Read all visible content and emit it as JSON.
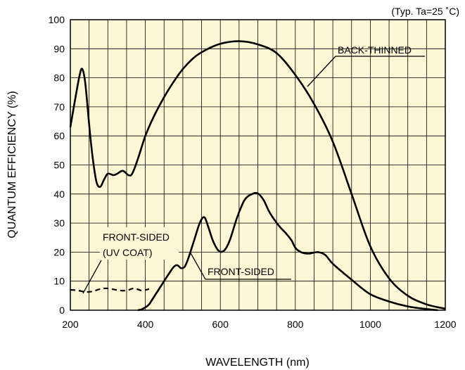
{
  "note": "(Typ. Ta=25 ˚C)",
  "chart_data": {
    "type": "line",
    "xlabel": "WAVELENGTH (nm)",
    "ylabel": "QUANTUM EFFICIENCY (%)",
    "xlim": [
      200,
      1200
    ],
    "ylim": [
      0,
      100
    ],
    "x_ticks": [
      200,
      400,
      600,
      800,
      1000,
      1200
    ],
    "y_ticks": [
      0,
      10,
      20,
      30,
      40,
      50,
      60,
      70,
      80,
      90,
      100
    ],
    "grid": true,
    "background_color": "#fdf7d6",
    "series": [
      {
        "name": "BACK-THINNED",
        "style": "solid",
        "points": [
          [
            200,
            63
          ],
          [
            212,
            72
          ],
          [
            225,
            81
          ],
          [
            232,
            83
          ],
          [
            240,
            78
          ],
          [
            250,
            64
          ],
          [
            260,
            52
          ],
          [
            270,
            44
          ],
          [
            280,
            42.5
          ],
          [
            290,
            45
          ],
          [
            300,
            47
          ],
          [
            315,
            46.5
          ],
          [
            325,
            47
          ],
          [
            340,
            48
          ],
          [
            355,
            46.5
          ],
          [
            365,
            47
          ],
          [
            380,
            52
          ],
          [
            400,
            60
          ],
          [
            420,
            66
          ],
          [
            440,
            71
          ],
          [
            460,
            75.5
          ],
          [
            480,
            79.5
          ],
          [
            500,
            83
          ],
          [
            530,
            87
          ],
          [
            560,
            89.5
          ],
          [
            600,
            91.7
          ],
          [
            650,
            92.6
          ],
          [
            700,
            91.5
          ],
          [
            750,
            88.5
          ],
          [
            800,
            81
          ],
          [
            850,
            71
          ],
          [
            900,
            58
          ],
          [
            950,
            40
          ],
          [
            1000,
            22
          ],
          [
            1050,
            11
          ],
          [
            1100,
            5
          ],
          [
            1150,
            2
          ],
          [
            1200,
            0.5
          ]
        ]
      },
      {
        "name": "FRONT-SIDED",
        "style": "solid",
        "points": [
          [
            380,
            0
          ],
          [
            390,
            0.3
          ],
          [
            400,
            1
          ],
          [
            410,
            2
          ],
          [
            420,
            4
          ],
          [
            440,
            8
          ],
          [
            460,
            12
          ],
          [
            475,
            14.8
          ],
          [
            485,
            15.5
          ],
          [
            495,
            14.5
          ],
          [
            505,
            15
          ],
          [
            515,
            18
          ],
          [
            530,
            24
          ],
          [
            545,
            30
          ],
          [
            557,
            32
          ],
          [
            567,
            29
          ],
          [
            580,
            24
          ],
          [
            595,
            20.5
          ],
          [
            610,
            20.5
          ],
          [
            625,
            24
          ],
          [
            645,
            32
          ],
          [
            665,
            38
          ],
          [
            685,
            40
          ],
          [
            700,
            40.2
          ],
          [
            715,
            38
          ],
          [
            730,
            34
          ],
          [
            745,
            31
          ],
          [
            760,
            28.5
          ],
          [
            775,
            26.5
          ],
          [
            790,
            24
          ],
          [
            800,
            21.5
          ],
          [
            815,
            20
          ],
          [
            835,
            19.5
          ],
          [
            860,
            20
          ],
          [
            880,
            19
          ],
          [
            900,
            16
          ],
          [
            950,
            10.5
          ],
          [
            1000,
            5.5
          ],
          [
            1050,
            3
          ],
          [
            1100,
            1.3
          ],
          [
            1150,
            0.4
          ],
          [
            1180,
            0
          ]
        ]
      },
      {
        "name": "FRONT-SIDED (UV COAT)",
        "style": "dashed",
        "points": [
          [
            200,
            7
          ],
          [
            220,
            6.8
          ],
          [
            240,
            6.3
          ],
          [
            260,
            6.5
          ],
          [
            280,
            7.3
          ],
          [
            300,
            7.5
          ],
          [
            330,
            6.8
          ],
          [
            350,
            6.8
          ],
          [
            370,
            7.5
          ],
          [
            390,
            6.8
          ],
          [
            410,
            7.3
          ]
        ]
      }
    ],
    "annotations": [
      {
        "text": "BACK-THINNED",
        "target": "BACK-THINNED"
      },
      {
        "text": "FRONT-SIDED",
        "target": "FRONT-SIDED"
      },
      {
        "text": "FRONT-SIDED",
        "target": "FRONT-SIDED (UV COAT)"
      },
      {
        "text": "(UV COAT)",
        "target": "FRONT-SIDED (UV COAT)"
      }
    ]
  }
}
